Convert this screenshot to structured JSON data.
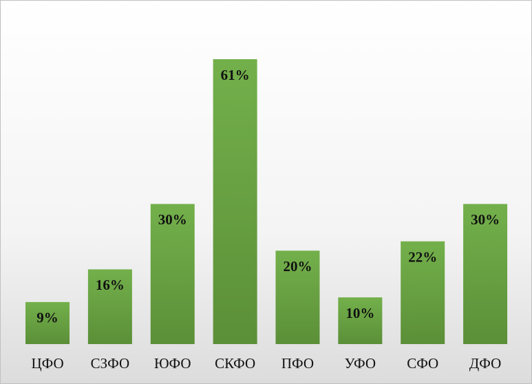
{
  "chart_data": {
    "type": "bar",
    "categories": [
      "ЦФО",
      "СЗФО",
      "ЮФО",
      "СКФО",
      "ПФО",
      "УФО",
      "СФО",
      "ДФО"
    ],
    "values": [
      9,
      16,
      30,
      61,
      20,
      10,
      22,
      30
    ],
    "value_labels": [
      "9%",
      "16%",
      "30%",
      "61%",
      "20%",
      "10%",
      "22%",
      "30%"
    ],
    "color": "#6aa845"
  }
}
